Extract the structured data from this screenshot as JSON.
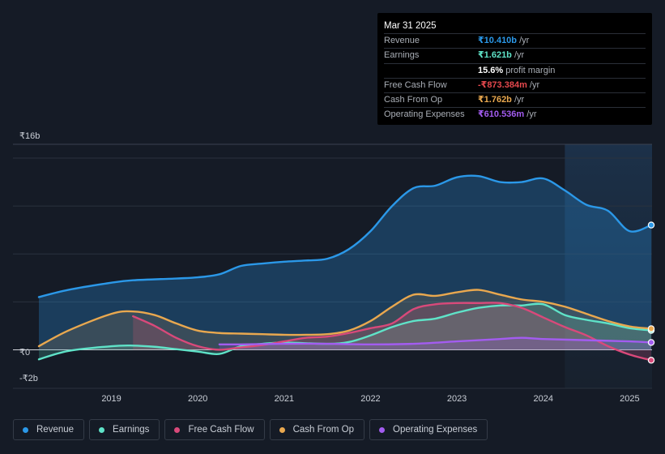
{
  "tooltip": {
    "date": "Mar 31 2025",
    "rows": [
      {
        "label": "Revenue",
        "value": "₹10.410b",
        "unit": " /yr",
        "color": "#2b98e8"
      },
      {
        "label": "Earnings",
        "value": "₹1.621b",
        "unit": " /yr",
        "color": "#5fe3c8"
      },
      {
        "label": "",
        "value": "15.6%",
        "unit": " profit margin",
        "color": "#ffffff"
      },
      {
        "label": "Free Cash Flow",
        "value": "-₹873.384m",
        "unit": " /yr",
        "color": "#e5484d"
      },
      {
        "label": "Cash From Op",
        "value": "₹1.762b",
        "unit": " /yr",
        "color": "#e9a84f"
      },
      {
        "label": "Operating Expenses",
        "value": "₹610.536m",
        "unit": " /yr",
        "color": "#a35cf0"
      }
    ]
  },
  "legend": [
    {
      "label": "Revenue",
      "color": "#2b98e8"
    },
    {
      "label": "Earnings",
      "color": "#5fe3c8"
    },
    {
      "label": "Free Cash Flow",
      "color": "#d9497a"
    },
    {
      "label": "Cash From Op",
      "color": "#e9a84f"
    },
    {
      "label": "Operating Expenses",
      "color": "#a35cf0"
    }
  ],
  "chart_data": {
    "type": "area",
    "y_labels": {
      "top": "₹16b",
      "zero": "₹0",
      "bottom": "-₹2b"
    },
    "ylim": [
      -2,
      16
    ],
    "xlim": [
      2018.16,
      2025.25
    ],
    "x_ticks": [
      {
        "x": 2019.0,
        "label": "2019"
      },
      {
        "x": 2020.0,
        "label": "2020"
      },
      {
        "x": 2021.0,
        "label": "2021"
      },
      {
        "x": 2022.0,
        "label": "2022"
      },
      {
        "x": 2023.0,
        "label": "2023"
      },
      {
        "x": 2024.0,
        "label": "2024"
      },
      {
        "x": 2025.0,
        "label": "2025"
      }
    ],
    "highlight_from": 2024.25,
    "series": [
      {
        "name": "Revenue",
        "color": "#2b98e8",
        "x": [
          2018.16,
          2018.5,
          2019.0,
          2019.25,
          2019.75,
          2020.0,
          2020.25,
          2020.5,
          2020.75,
          2021.0,
          2021.25,
          2021.5,
          2021.75,
          2022.0,
          2022.25,
          2022.5,
          2022.75,
          2023.0,
          2023.25,
          2023.5,
          2023.75,
          2024.0,
          2024.25,
          2024.5,
          2024.75,
          2025.0,
          2025.25
        ],
        "y": [
          4.4,
          5.0,
          5.6,
          5.8,
          5.95,
          6.05,
          6.3,
          7.0,
          7.2,
          7.35,
          7.45,
          7.6,
          8.4,
          9.9,
          12.0,
          13.5,
          13.7,
          14.4,
          14.5,
          14.0,
          14.0,
          14.3,
          13.3,
          12.1,
          11.6,
          9.9,
          10.41
        ]
      },
      {
        "name": "Earnings",
        "color": "#5fe3c8",
        "x": [
          2018.16,
          2018.5,
          2019.0,
          2019.25,
          2019.5,
          2019.75,
          2020.0,
          2020.25,
          2020.5,
          2020.75,
          2021.0,
          2021.5,
          2021.75,
          2022.0,
          2022.25,
          2022.5,
          2022.75,
          2023.0,
          2023.25,
          2023.5,
          2023.75,
          2024.0,
          2024.25,
          2024.5,
          2024.75,
          2025.0,
          2025.25
        ],
        "y": [
          -0.8,
          -0.1,
          0.3,
          0.35,
          0.25,
          0.05,
          -0.15,
          -0.35,
          0.3,
          0.5,
          0.6,
          0.5,
          0.65,
          1.2,
          1.9,
          2.4,
          2.6,
          3.1,
          3.5,
          3.7,
          3.7,
          3.8,
          2.9,
          2.5,
          2.2,
          1.8,
          1.621
        ]
      },
      {
        "name": "Free Cash Flow",
        "color": "#d9497a",
        "x": [
          2019.25,
          2019.5,
          2019.75,
          2020.0,
          2020.25,
          2020.5,
          2020.75,
          2021.0,
          2021.25,
          2021.5,
          2021.75,
          2022.0,
          2022.25,
          2022.5,
          2022.75,
          2023.0,
          2023.25,
          2023.5,
          2023.75,
          2024.0,
          2024.25,
          2024.5,
          2024.75,
          2025.0,
          2025.25
        ],
        "y": [
          2.8,
          2.0,
          1.0,
          0.3,
          0.0,
          0.2,
          0.4,
          0.7,
          1.0,
          1.1,
          1.4,
          1.8,
          2.2,
          3.4,
          3.8,
          3.9,
          3.9,
          3.9,
          3.5,
          2.7,
          1.9,
          1.2,
          0.3,
          -0.4,
          -0.873
        ]
      },
      {
        "name": "Cash From Op",
        "color": "#e9a84f",
        "x": [
          2018.16,
          2018.5,
          2019.0,
          2019.25,
          2019.5,
          2019.75,
          2020.0,
          2020.25,
          2020.5,
          2020.75,
          2021.0,
          2021.25,
          2021.5,
          2021.75,
          2022.0,
          2022.25,
          2022.5,
          2022.75,
          2023.0,
          2023.25,
          2023.5,
          2023.75,
          2024.0,
          2024.25,
          2024.5,
          2024.75,
          2025.0,
          2025.25
        ],
        "y": [
          0.3,
          1.6,
          3.0,
          3.2,
          2.9,
          2.2,
          1.6,
          1.4,
          1.35,
          1.3,
          1.25,
          1.25,
          1.3,
          1.6,
          2.4,
          3.6,
          4.6,
          4.5,
          4.8,
          5.0,
          4.6,
          4.2,
          4.0,
          3.6,
          3.0,
          2.4,
          1.95,
          1.762
        ]
      },
      {
        "name": "Operating Expenses",
        "color": "#a35cf0",
        "x": [
          2020.25,
          2020.5,
          2021.0,
          2021.5,
          2022.0,
          2022.5,
          2023.0,
          2023.5,
          2023.75,
          2024.0,
          2024.5,
          2025.0,
          2025.25
        ],
        "y": [
          0.45,
          0.45,
          0.5,
          0.5,
          0.45,
          0.5,
          0.7,
          0.9,
          1.0,
          0.9,
          0.8,
          0.7,
          0.611
        ]
      }
    ]
  }
}
